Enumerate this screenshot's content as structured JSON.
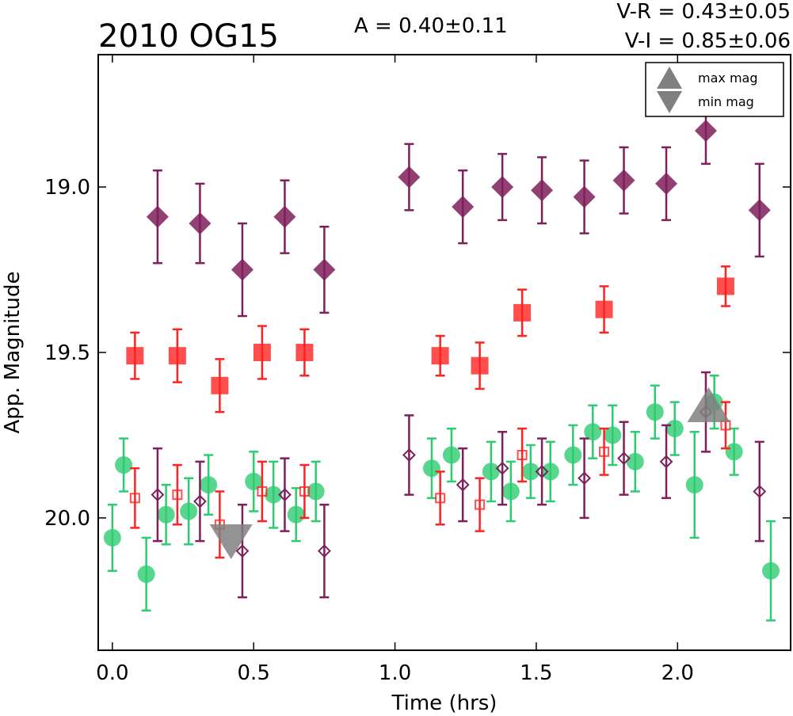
{
  "chart_data": {
    "type": "scatter",
    "title": "2010 OG15",
    "amplitude_text": "A  = 0.40±0.11",
    "color_indices": [
      "V-R = 0.43±0.05",
      "V-I  = 0.85±0.06"
    ],
    "xlabel": "Time (hrs)",
    "ylabel": "App. Magnitude",
    "xlim": [
      -0.05,
      2.4
    ],
    "ylim": [
      20.4,
      18.6
    ],
    "y_inverted": true,
    "x_ticks": [
      0.0,
      0.5,
      1.0,
      1.5,
      2.0
    ],
    "x_tick_labels": [
      "0.0",
      "0.5",
      "1.0",
      "1.5",
      "2.0"
    ],
    "y_ticks": [
      19.0,
      19.5,
      20.0
    ],
    "y_tick_labels": [
      "19.0",
      "19.5",
      "20.0"
    ],
    "grid": false,
    "legend_position": "top-right",
    "legend": [
      {
        "label": "max mag",
        "marker": "triangle-up"
      },
      {
        "label": "min mag",
        "marker": "triangle-down"
      }
    ],
    "series": [
      {
        "marker": "filled-diamond",
        "color": "#7f1f5c",
        "points": [
          {
            "x": 0.16,
            "y": 19.09,
            "err": 0.14
          },
          {
            "x": 0.31,
            "y": 19.11,
            "err": 0.12
          },
          {
            "x": 0.46,
            "y": 19.25,
            "err": 0.14
          },
          {
            "x": 0.61,
            "y": 19.09,
            "err": 0.11
          },
          {
            "x": 0.75,
            "y": 19.25,
            "err": 0.13
          },
          {
            "x": 1.05,
            "y": 18.97,
            "err": 0.1
          },
          {
            "x": 1.24,
            "y": 19.06,
            "err": 0.11
          },
          {
            "x": 1.38,
            "y": 19.0,
            "err": 0.1
          },
          {
            "x": 1.52,
            "y": 19.01,
            "err": 0.1
          },
          {
            "x": 1.67,
            "y": 19.03,
            "err": 0.11
          },
          {
            "x": 1.81,
            "y": 18.98,
            "err": 0.1
          },
          {
            "x": 1.96,
            "y": 18.99,
            "err": 0.11
          },
          {
            "x": 2.1,
            "y": 18.83,
            "err": 0.1
          },
          {
            "x": 2.29,
            "y": 19.07,
            "err": 0.14
          }
        ]
      },
      {
        "marker": "filled-square",
        "color": "#ff2222",
        "points": [
          {
            "x": 0.08,
            "y": 19.51,
            "err": 0.07
          },
          {
            "x": 0.23,
            "y": 19.51,
            "err": 0.08
          },
          {
            "x": 0.38,
            "y": 19.6,
            "err": 0.08
          },
          {
            "x": 0.53,
            "y": 19.5,
            "err": 0.08
          },
          {
            "x": 0.68,
            "y": 19.5,
            "err": 0.07
          },
          {
            "x": 1.16,
            "y": 19.51,
            "err": 0.06
          },
          {
            "x": 1.3,
            "y": 19.54,
            "err": 0.07
          },
          {
            "x": 1.45,
            "y": 19.38,
            "err": 0.07
          },
          {
            "x": 1.74,
            "y": 19.37,
            "err": 0.07
          },
          {
            "x": 2.17,
            "y": 19.3,
            "err": 0.06
          }
        ]
      },
      {
        "marker": "filled-circle",
        "color": "#2ecc71",
        "points": [
          {
            "x": 0.0,
            "y": 20.06,
            "err": 0.1
          },
          {
            "x": 0.04,
            "y": 19.84,
            "err": 0.08
          },
          {
            "x": 0.12,
            "y": 20.17,
            "err": 0.11
          },
          {
            "x": 0.19,
            "y": 19.99,
            "err": 0.09
          },
          {
            "x": 0.27,
            "y": 19.98,
            "err": 0.1
          },
          {
            "x": 0.34,
            "y": 19.9,
            "err": 0.09
          },
          {
            "x": 0.5,
            "y": 19.89,
            "err": 0.09
          },
          {
            "x": 0.57,
            "y": 19.93,
            "err": 0.1
          },
          {
            "x": 0.65,
            "y": 19.99,
            "err": 0.08
          },
          {
            "x": 0.72,
            "y": 19.92,
            "err": 0.09
          },
          {
            "x": 1.13,
            "y": 19.85,
            "err": 0.09
          },
          {
            "x": 1.2,
            "y": 19.81,
            "err": 0.08
          },
          {
            "x": 1.34,
            "y": 19.86,
            "err": 0.09
          },
          {
            "x": 1.41,
            "y": 19.92,
            "err": 0.09
          },
          {
            "x": 1.48,
            "y": 19.86,
            "err": 0.08
          },
          {
            "x": 1.55,
            "y": 19.86,
            "err": 0.09
          },
          {
            "x": 1.63,
            "y": 19.81,
            "err": 0.09
          },
          {
            "x": 1.7,
            "y": 19.74,
            "err": 0.08
          },
          {
            "x": 1.77,
            "y": 19.75,
            "err": 0.09
          },
          {
            "x": 1.85,
            "y": 19.83,
            "err": 0.09
          },
          {
            "x": 1.92,
            "y": 19.68,
            "err": 0.08
          },
          {
            "x": 1.99,
            "y": 19.73,
            "err": 0.08
          },
          {
            "x": 2.06,
            "y": 19.9,
            "err": 0.16
          },
          {
            "x": 2.13,
            "y": 19.65,
            "err": 0.08
          },
          {
            "x": 2.2,
            "y": 19.8,
            "err": 0.07
          },
          {
            "x": 2.33,
            "y": 20.16,
            "err": 0.15
          }
        ]
      },
      {
        "marker": "open-diamond",
        "color": "#7f1f5c",
        "points": [
          {
            "x": 0.16,
            "y": 19.93,
            "err": 0.14
          },
          {
            "x": 0.31,
            "y": 19.95,
            "err": 0.12
          },
          {
            "x": 0.46,
            "y": 20.1,
            "err": 0.14
          },
          {
            "x": 0.61,
            "y": 19.93,
            "err": 0.11
          },
          {
            "x": 0.75,
            "y": 20.1,
            "err": 0.14
          },
          {
            "x": 1.05,
            "y": 19.81,
            "err": 0.12
          },
          {
            "x": 1.24,
            "y": 19.9,
            "err": 0.11
          },
          {
            "x": 1.38,
            "y": 19.85,
            "err": 0.11
          },
          {
            "x": 1.52,
            "y": 19.86,
            "err": 0.1
          },
          {
            "x": 1.67,
            "y": 19.88,
            "err": 0.12
          },
          {
            "x": 1.81,
            "y": 19.82,
            "err": 0.11
          },
          {
            "x": 1.96,
            "y": 19.83,
            "err": 0.11
          },
          {
            "x": 2.1,
            "y": 19.68,
            "err": 0.12
          },
          {
            "x": 2.29,
            "y": 19.92,
            "err": 0.15
          }
        ]
      },
      {
        "marker": "open-square",
        "color": "#ff2222",
        "points": [
          {
            "x": 0.08,
            "y": 19.94,
            "err": 0.09
          },
          {
            "x": 0.23,
            "y": 19.93,
            "err": 0.09
          },
          {
            "x": 0.38,
            "y": 20.02,
            "err": 0.1
          },
          {
            "x": 0.53,
            "y": 19.92,
            "err": 0.09
          },
          {
            "x": 0.68,
            "y": 19.92,
            "err": 0.08
          },
          {
            "x": 1.16,
            "y": 19.94,
            "err": 0.08
          },
          {
            "x": 1.3,
            "y": 19.96,
            "err": 0.08
          },
          {
            "x": 1.45,
            "y": 19.81,
            "err": 0.08
          },
          {
            "x": 1.74,
            "y": 19.8,
            "err": 0.07
          },
          {
            "x": 2.17,
            "y": 19.72,
            "err": 0.07
          }
        ]
      },
      {
        "marker": "triangle-up",
        "label": "max mag",
        "color": "#808080",
        "points": [
          {
            "x": 2.11,
            "y": 19.67
          }
        ]
      },
      {
        "marker": "triangle-down",
        "label": "min mag",
        "color": "#808080",
        "points": [
          {
            "x": 0.42,
            "y": 20.06
          }
        ]
      }
    ]
  }
}
